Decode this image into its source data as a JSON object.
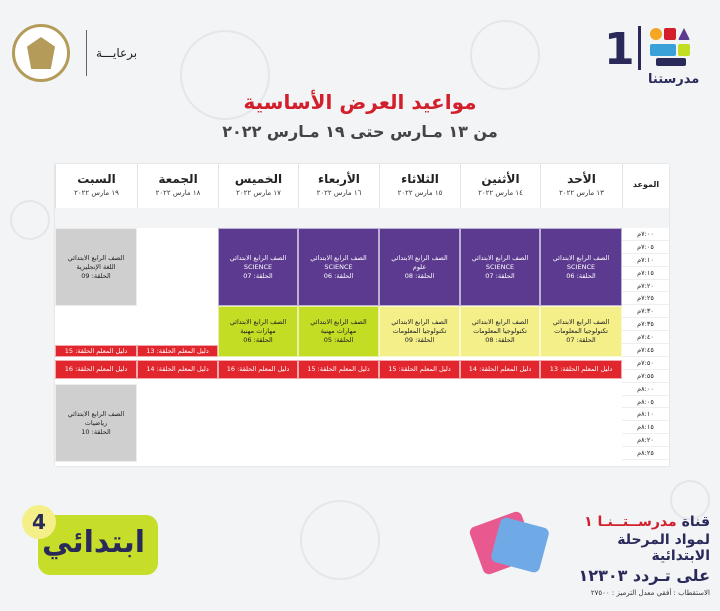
{
  "header": {
    "channel_number": "1",
    "channel_name": "مدرستنا",
    "sponsor_label": "برعايـــة",
    "title": "مواعيد العرض الأساسية",
    "subtitle": "من ١٣ مـارس حتى ١٩ مـارس ٢٠٢٢"
  },
  "table": {
    "time_header": "الموعد",
    "days": [
      {
        "name": "الأحد",
        "date": "١٣ مارس ٢٠٢٢"
      },
      {
        "name": "الأثنين",
        "date": "١٤ مارس ٢٠٢٢"
      },
      {
        "name": "الثلاثاء",
        "date": "١٥ مارس ٢٠٢٢"
      },
      {
        "name": "الأربعاء",
        "date": "١٦ مارس ٢٠٢٢"
      },
      {
        "name": "الخميس",
        "date": "١٧ مارس ٢٠٢٢"
      },
      {
        "name": "الجمعة",
        "date": "١٨ مارس ٢٠٢٢"
      },
      {
        "name": "السبت",
        "date": "١٩ مارس ٢٠٢٢"
      }
    ],
    "times": [
      "٧:٠٠م",
      "٧:٠٥م",
      "٧:١٠م",
      "٧:١٥م",
      "٧:٢٠م",
      "٧:٢٥م",
      "٧:٣٠م",
      "٧:٣٥م",
      "٧:٤٠م",
      "٧:٤٥م",
      "٧:٥٠م",
      "٧:٥٥م",
      "٨:٠٠م",
      "٨:٠٥م",
      "٨:١٠م",
      "٨:١٥م",
      "٨:٢٠م",
      "٨:٢٥م"
    ],
    "blocks": {
      "sun_a": [
        "الصف الرابع الابتدائي",
        "SCIENCE",
        "الحلقة: 06"
      ],
      "mon_a": [
        "الصف الرابع الابتدائي",
        "SCIENCE",
        "الحلقة: 07"
      ],
      "tue_a": [
        "الصف الرابع الابتدائي",
        "علوم",
        "الحلقة: 08"
      ],
      "wed_a": [
        "الصف الرابع الابتدائي",
        "SCIENCE",
        "الحلقة: 06"
      ],
      "thu_a": [
        "الصف الرابع الابتدائي",
        "SCIENCE",
        "الحلقة: 07"
      ],
      "sat_a": [
        "الصف الرابع الابتدائي",
        "اللغة الإنجليزية",
        "الحلقة: 09"
      ],
      "sun_b": [
        "الصف الرابع الابتدائي",
        "تكنولوجيا المعلومات",
        "الحلقة: 07"
      ],
      "mon_b": [
        "الصف الرابع الابتدائي",
        "تكنولوجيا المعلومات",
        "الحلقة: 08"
      ],
      "tue_b": [
        "الصف الرابع الابتدائي",
        "تكنولوجيا المعلومات",
        "الحلقة: 09"
      ],
      "wed_b": [
        "الصف الرابع الابتدائي",
        "مهارات مهنية",
        "الحلقة: 05"
      ],
      "thu_b": [
        "الصف الرابع الابتدائي",
        "مهارات مهنية",
        "الحلقة: 06"
      ],
      "fri_r1": "دليل المعلم الحلقة: 13",
      "sat_r1": "دليل المعلم الحلقة: 15",
      "sun_r": "دليل المعلم الحلقة: 13",
      "mon_r": "دليل المعلم الحلقة: 14",
      "tue_r": "دليل المعلم الحلقة: 15",
      "wed_r": "دليل المعلم الحلقة: 15",
      "thu_r": "دليل المعلم الحلقة: 16",
      "fri_r2": "دليل المعلم الحلقة: 14",
      "sat_r2": "دليل المعلم الحلقة: 16",
      "sat_c": [
        "الصف الرابع الابتدائي",
        "رياضيات",
        "الحلقة: 10"
      ]
    },
    "colors": {
      "purple": "#5c3a8f",
      "lime": "#c3dc24",
      "yellow": "#f5ef8a",
      "grey": "#cfcfd0",
      "red": "#e2262d"
    }
  },
  "footer": {
    "badge_text": "ابتدائي",
    "badge_number": "4",
    "channel_line1_a": "قناة ",
    "channel_line1_b": "مدرســتــنـا ١",
    "channel_line2": "لمواد المرحلة الابتدائية",
    "channel_line3": "على تـردد ١٢٣٠٣",
    "reception": "الاستقطاب : أفقي معدل الترميز : ٢٧٥٠٠"
  }
}
